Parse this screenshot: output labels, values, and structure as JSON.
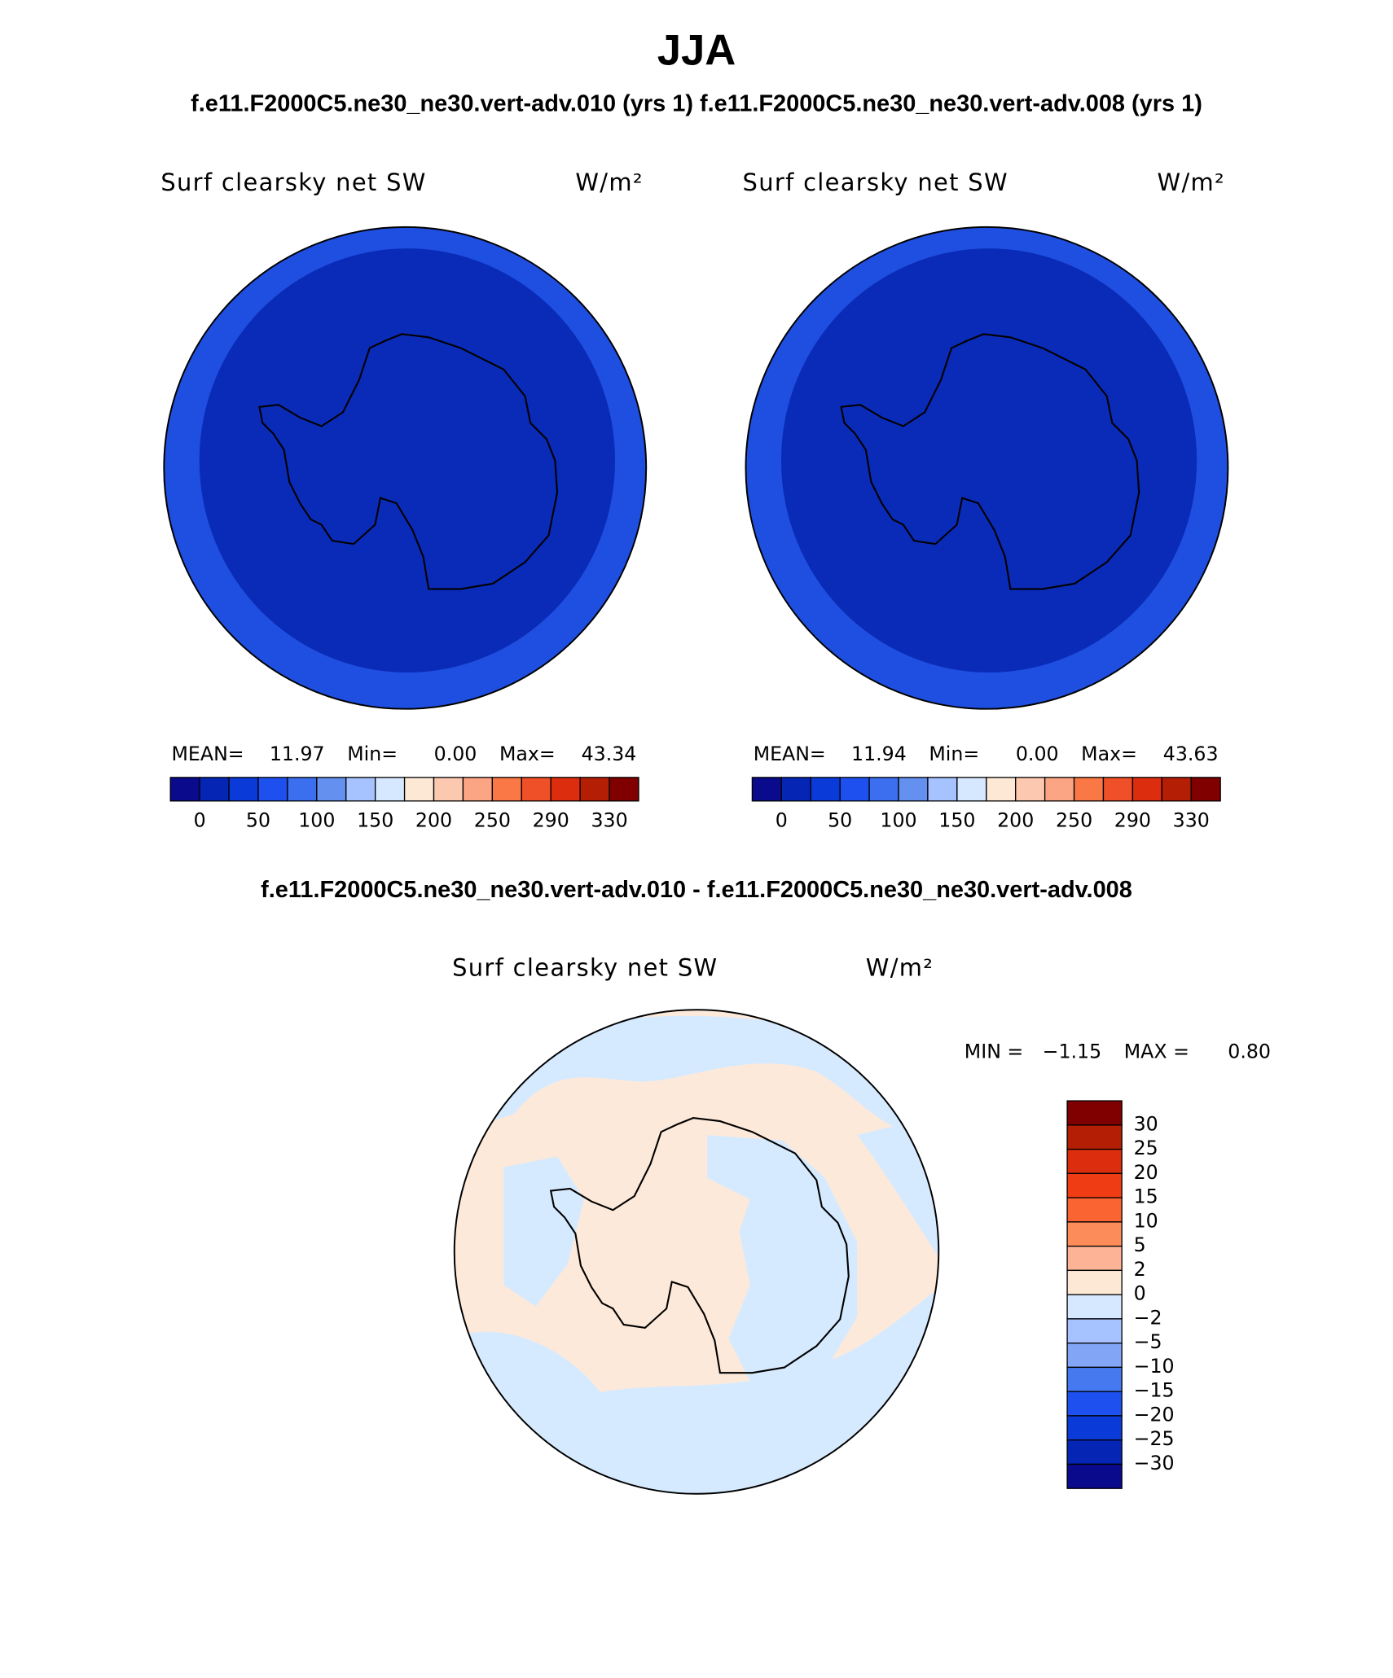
{
  "title": "JJA",
  "subtitle": "f.e11.F2000C5.ne30_ne30.vert-adv.010 (yrs 1) f.e11.F2000C5.ne30_ne30.vert-adv.008 (yrs 1)",
  "panels": [
    {
      "variable": "Surf clearsky net SW",
      "units": "W/m²",
      "stats": [
        "MEAN=",
        "11.97",
        "Min=",
        "0.00",
        "Max=",
        "43.34"
      ],
      "colorbar": {
        "colors": [
          "#0a0a8c",
          "#0526b4",
          "#0a3ad8",
          "#1e50f0",
          "#3c6ef0",
          "#6490f0",
          "#a6c2ff",
          "#d6e8ff",
          "#fde8d6",
          "#fdc8b0",
          "#fca584",
          "#fa7846",
          "#f05028",
          "#dc2d0f",
          "#b41e05",
          "#800000"
        ],
        "labels": [
          "0",
          "50",
          "100",
          "150",
          "200",
          "250",
          "290",
          "330"
        ]
      }
    },
    {
      "variable": "Surf clearsky net SW",
      "units": "W/m²",
      "stats": [
        "MEAN=",
        "11.94",
        "Min=",
        "0.00",
        "Max=",
        "43.63"
      ],
      "colorbar": {
        "colors": [
          "#0a0a8c",
          "#0526b4",
          "#0a3ad8",
          "#1e50f0",
          "#3c6ef0",
          "#6490f0",
          "#a6c2ff",
          "#d6e8ff",
          "#fde8d6",
          "#fdc8b0",
          "#fca584",
          "#fa7846",
          "#f05028",
          "#dc2d0f",
          "#b41e05",
          "#800000"
        ],
        "labels": [
          "0",
          "50",
          "100",
          "150",
          "200",
          "250",
          "290",
          "330"
        ]
      }
    }
  ],
  "difference": {
    "title": "f.e11.F2000C5.ne30_ne30.vert-adv.010 - f.e11.F2000C5.ne30_ne30.vert-adv.008",
    "variable": "Surf clearsky net SW",
    "units": "W/m²",
    "stats": [
      "MIN =",
      "−1.15",
      "MAX =",
      "0.80"
    ],
    "colorbar": {
      "colors": [
        "#800000",
        "#b41e05",
        "#dc2d0f",
        "#f03c14",
        "#fa6432",
        "#fc8c5a",
        "#fdb496",
        "#fde8d6",
        "#d6e8ff",
        "#a6c2ff",
        "#82a6f5",
        "#4678f0",
        "#1e50f0",
        "#0a3ad8",
        "#0526b4",
        "#0a0a8c"
      ],
      "labels": [
        "30",
        "25",
        "20",
        "15",
        "10",
        "5",
        "2",
        "0",
        "−2",
        "−5",
        "−10",
        "−15",
        "−20",
        "−25",
        "−30"
      ]
    }
  }
}
